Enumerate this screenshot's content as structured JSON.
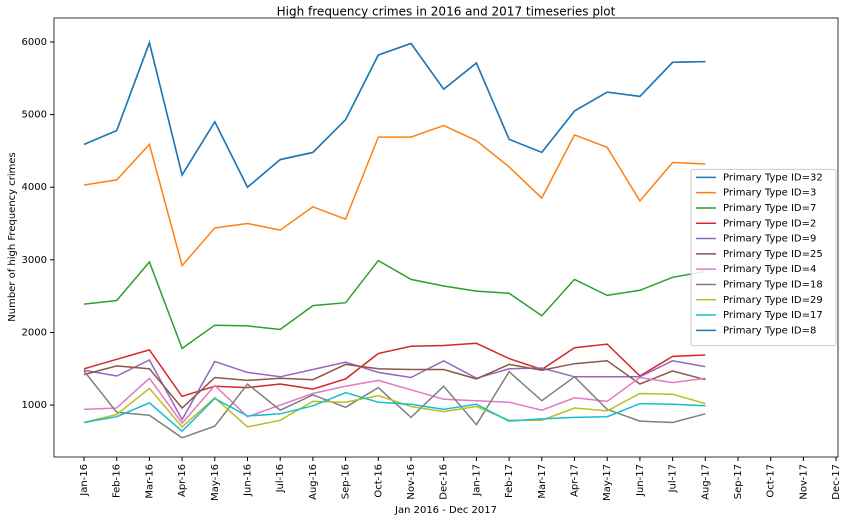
{
  "chart_data": {
    "type": "line",
    "title": "High frequency crimes in 2016 and 2017 timeseries plot",
    "x_label": "Jan 2016 - Dec 2017",
    "y_label": "Number of high Frequency crimes",
    "categories": [
      "Jan-16",
      "Feb-16",
      "Mar-16",
      "Apr-16",
      "May-16",
      "Jun-16",
      "Jul-16",
      "Aug-16",
      "Sep-16",
      "Oct-16",
      "Nov-16",
      "Dec-16",
      "Jan-17",
      "Feb-17",
      "Mar-17",
      "Apr-17",
      "May-17",
      "Jun-17",
      "Jul-17",
      "Aug-17",
      "Sep-17",
      "Oct-17",
      "Nov-17",
      "Dec-17"
    ],
    "ylim": [
      285,
      6330
    ],
    "yticks": [
      1000,
      2000,
      3000,
      4000,
      5000,
      6000
    ],
    "legend": "center right",
    "series": [
      {
        "name": "Primary Type ID=32",
        "color": "#1f77b4",
        "values": [
          4590,
          4780,
          5990,
          4170,
          4900,
          4000,
          4380,
          4480,
          4930,
          5820,
          5980,
          5350,
          5710,
          4660,
          4480,
          5050,
          5310,
          5250,
          5720,
          5730,
          null,
          null,
          null,
          null
        ]
      },
      {
        "name": "Primary Type ID=3",
        "color": "#ff7f0e",
        "values": [
          4030,
          4100,
          4590,
          2920,
          3440,
          3500,
          3410,
          3730,
          3560,
          4690,
          4690,
          4850,
          4640,
          4280,
          3850,
          4720,
          4550,
          3810,
          4340,
          4320,
          null,
          null,
          null,
          null
        ]
      },
      {
        "name": "Primary Type ID=7",
        "color": "#2ca02c",
        "values": [
          2390,
          2440,
          2970,
          1780,
          2100,
          2090,
          2040,
          2370,
          2410,
          2990,
          2730,
          2640,
          2570,
          2540,
          2230,
          2730,
          2510,
          2580,
          2760,
          2840,
          null,
          null,
          null,
          null
        ]
      },
      {
        "name": "Primary Type ID=2",
        "color": "#d62728",
        "values": [
          1500,
          1630,
          1760,
          1120,
          1260,
          1240,
          1290,
          1220,
          1360,
          1710,
          1810,
          1820,
          1850,
          1640,
          1490,
          1790,
          1840,
          1400,
          1670,
          1690,
          null,
          null,
          null,
          null
        ]
      },
      {
        "name": "Primary Type ID=9",
        "color": "#9467bd",
        "values": [
          1480,
          1400,
          1620,
          800,
          1600,
          1450,
          1390,
          1490,
          1590,
          1450,
          1380,
          1610,
          1370,
          1500,
          1510,
          1390,
          1390,
          1390,
          1610,
          1530,
          null,
          null,
          null,
          null
        ]
      },
      {
        "name": "Primary Type ID=25",
        "color": "#8c564b",
        "values": [
          1420,
          1540,
          1500,
          960,
          1380,
          1340,
          1370,
          1350,
          1560,
          1500,
          1490,
          1490,
          1360,
          1560,
          1480,
          1570,
          1610,
          1290,
          1470,
          1350,
          null,
          null,
          null,
          null
        ]
      },
      {
        "name": "Primary Type ID=4",
        "color": "#e377c2",
        "values": [
          940,
          960,
          1370,
          750,
          1270,
          840,
          1000,
          1160,
          1260,
          1340,
          1210,
          1080,
          1060,
          1040,
          930,
          1100,
          1050,
          1380,
          1310,
          1370,
          null,
          null,
          null,
          null
        ]
      },
      {
        "name": "Primary Type ID=18",
        "color": "#7f7f7f",
        "values": [
          1470,
          900,
          860,
          550,
          710,
          1290,
          930,
          1140,
          970,
          1240,
          830,
          1260,
          730,
          1460,
          1060,
          1390,
          940,
          780,
          760,
          880,
          null,
          null,
          null,
          null
        ]
      },
      {
        "name": "Primary Type ID=29",
        "color": "#bcbd22",
        "values": [
          760,
          870,
          1230,
          700,
          1100,
          700,
          790,
          1050,
          1040,
          1130,
          980,
          910,
          980,
          790,
          790,
          960,
          920,
          1160,
          1150,
          1020,
          null,
          null,
          null,
          null
        ]
      },
      {
        "name": "Primary Type ID=17",
        "color": "#17becf",
        "values": [
          760,
          840,
          1030,
          640,
          1090,
          850,
          880,
          990,
          1170,
          1040,
          1010,
          940,
          1010,
          780,
          810,
          830,
          840,
          1020,
          1010,
          990,
          null,
          null,
          null,
          null
        ]
      },
      {
        "name": "Primary Type ID=8",
        "color": "#1f77b4",
        "values": [
          4590,
          4780,
          5990,
          4170,
          4900,
          4000,
          4380,
          4480,
          4930,
          5820,
          5980,
          5350,
          5710,
          4660,
          4480,
          5050,
          5310,
          5250,
          5720,
          5730,
          null,
          null,
          null,
          null
        ]
      }
    ]
  }
}
